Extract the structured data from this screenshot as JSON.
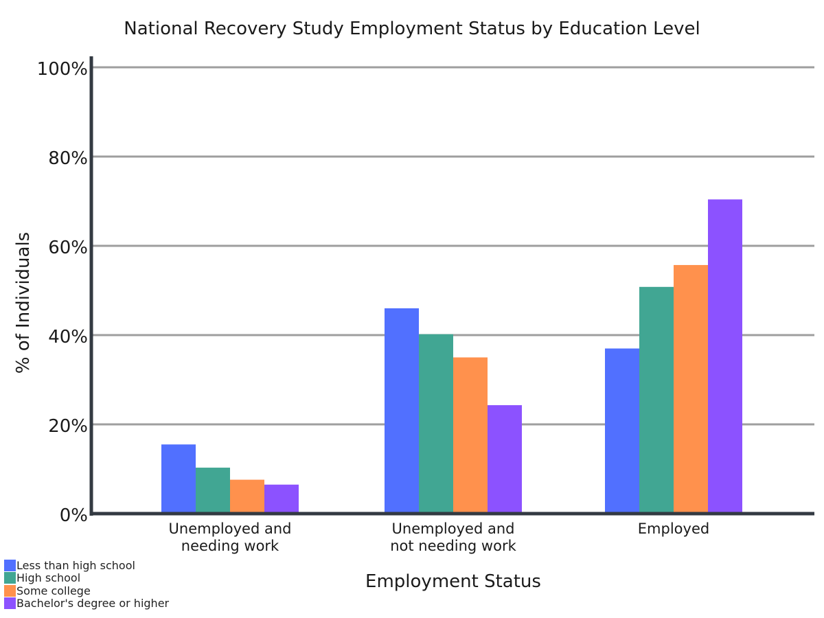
{
  "chart_data": {
    "type": "bar",
    "title": "National Recovery Study Employment Status by Education Level",
    "xlabel": "Employment Status",
    "ylabel": "% of Individuals",
    "ylim": [
      0,
      100
    ],
    "y_ticks": [
      "0%",
      "20%",
      "40%",
      "60%",
      "80%",
      "100%"
    ],
    "y_tick_values": [
      0,
      20,
      40,
      60,
      80,
      100
    ],
    "grid": true,
    "legend_position": "bottom-left",
    "categories": [
      [
        "Unemployed and",
        "needing work"
      ],
      [
        "Unemployed and",
        "not needing work"
      ],
      [
        "Employed"
      ]
    ],
    "series": [
      {
        "name": "Less than high school",
        "color": "#5170ff",
        "values": [
          15.5,
          46,
          37
        ]
      },
      {
        "name": "High school",
        "color": "#41a693",
        "values": [
          10.3,
          40.2,
          50.8
        ]
      },
      {
        "name": "Some college",
        "color": "#ff914d",
        "values": [
          7.6,
          35,
          55.7
        ]
      },
      {
        "name": "Bachelor's degree or higher",
        "color": "#8c52ff",
        "values": [
          6.5,
          24.3,
          70.4
        ]
      }
    ]
  }
}
